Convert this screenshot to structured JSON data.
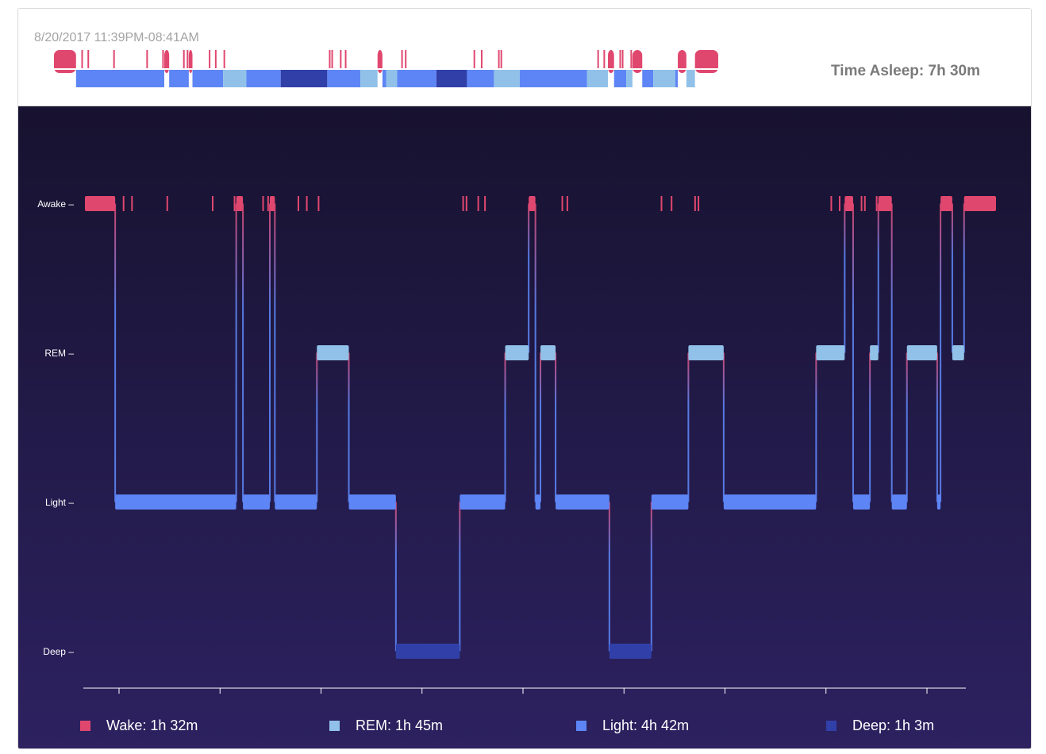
{
  "header": {
    "date_range": "8/20/2017 11:39PM-08:41AM",
    "time_asleep": "Time Asleep: 7h 30m"
  },
  "colors": {
    "wake": "#e0476f",
    "rem": "#91c1e8",
    "light": "#5d85f5",
    "deep": "#3040a8",
    "axis": "#ffffff"
  },
  "legend": [
    {
      "key": "wake",
      "label": "Wake: 1h 32m"
    },
    {
      "key": "rem",
      "label": "REM: 1h 45m"
    },
    {
      "key": "light",
      "label": "Light: 4h 42m"
    },
    {
      "key": "deep",
      "label": "Deep: 1h 3m"
    }
  ],
  "chart_data": {
    "type": "step",
    "x_unit": "minutes since 11:39PM",
    "x_range": [
      0,
      542
    ],
    "y_categories": [
      "Awake",
      "REM",
      "Light",
      "Deep"
    ],
    "x_ticks_count": 9,
    "segments": [
      {
        "stage": "Awake",
        "start": 0,
        "end": 18
      },
      {
        "stage": "Light",
        "start": 18,
        "end": 90
      },
      {
        "stage": "Awake",
        "start": 90,
        "end": 94
      },
      {
        "stage": "Light",
        "start": 94,
        "end": 110
      },
      {
        "stage": "Awake",
        "start": 110,
        "end": 113
      },
      {
        "stage": "Light",
        "start": 113,
        "end": 138
      },
      {
        "stage": "REM",
        "start": 138,
        "end": 157
      },
      {
        "stage": "Light",
        "start": 157,
        "end": 185
      },
      {
        "stage": "Deep",
        "start": 185,
        "end": 223
      },
      {
        "stage": "Light",
        "start": 223,
        "end": 250
      },
      {
        "stage": "REM",
        "start": 250,
        "end": 264
      },
      {
        "stage": "Awake",
        "start": 264,
        "end": 268
      },
      {
        "stage": "Light",
        "start": 268,
        "end": 271
      },
      {
        "stage": "REM",
        "start": 271,
        "end": 280
      },
      {
        "stage": "Light",
        "start": 280,
        "end": 312
      },
      {
        "stage": "Deep",
        "start": 312,
        "end": 337
      },
      {
        "stage": "Light",
        "start": 337,
        "end": 359
      },
      {
        "stage": "REM",
        "start": 359,
        "end": 380
      },
      {
        "stage": "Light",
        "start": 380,
        "end": 435
      },
      {
        "stage": "REM",
        "start": 435,
        "end": 452
      },
      {
        "stage": "Awake",
        "start": 452,
        "end": 457
      },
      {
        "stage": "Light",
        "start": 457,
        "end": 467
      },
      {
        "stage": "REM",
        "start": 467,
        "end": 472
      },
      {
        "stage": "Awake",
        "start": 472,
        "end": 480
      },
      {
        "stage": "Light",
        "start": 480,
        "end": 489
      },
      {
        "stage": "REM",
        "start": 489,
        "end": 507
      },
      {
        "stage": "Light",
        "start": 507,
        "end": 509
      },
      {
        "stage": "Awake",
        "start": 509,
        "end": 516
      },
      {
        "stage": "REM",
        "start": 516,
        "end": 523
      },
      {
        "stage": "Awake",
        "start": 523,
        "end": 542
      }
    ],
    "wake_ticks": [
      23,
      28,
      49,
      76,
      89,
      106,
      109,
      127,
      132,
      139,
      225,
      227,
      234,
      238,
      284,
      287,
      343,
      349,
      363,
      365,
      444,
      449,
      462,
      464,
      471
    ]
  }
}
